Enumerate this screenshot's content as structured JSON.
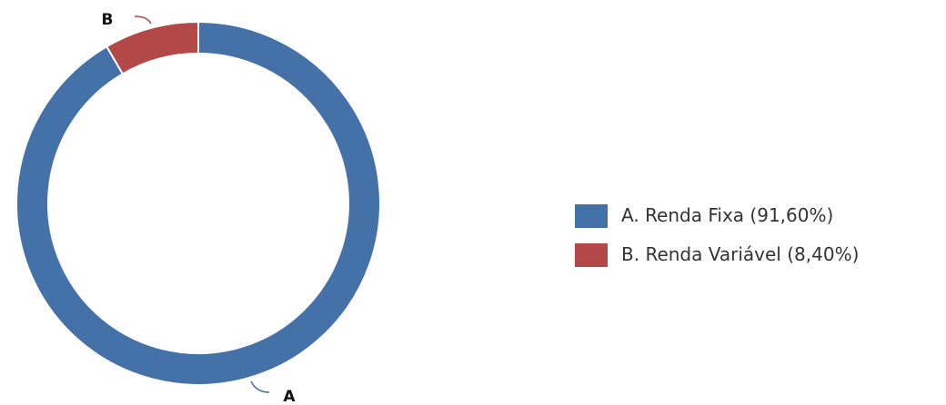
{
  "chart_data": {
    "type": "donut",
    "categories": [
      "Renda Fixa",
      "Renda Variável"
    ],
    "slice_labels": [
      "A",
      "B"
    ],
    "values": [
      91.6,
      8.4
    ],
    "value_labels": [
      "91,60%",
      "8,40%"
    ],
    "colors": [
      "#4571a9",
      "#b34848"
    ]
  }
}
